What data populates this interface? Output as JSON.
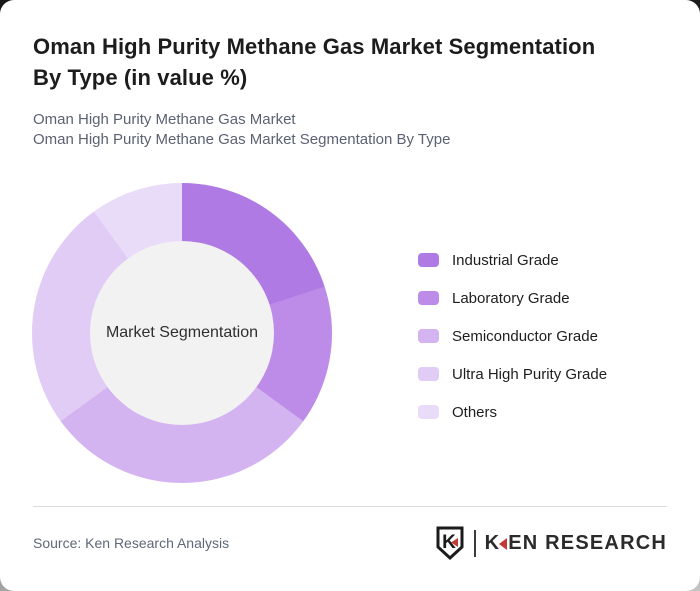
{
  "header": {
    "title_lines": [
      "Oman High Purity Methane Gas Market Segmentation",
      "By Type (in value %)"
    ],
    "subtitle1": "Oman High Purity Methane Gas Market",
    "subtitle2": "Oman High Purity Methane Gas Market Segmentation By Type"
  },
  "chart_data": {
    "type": "pie",
    "subtype": "donut",
    "title": "Oman High Purity Methane Gas Market Segmentation By Type (in value %)",
    "center_label": "Market Segmentation",
    "categories": [
      "Industrial Grade",
      "Laboratory Grade",
      "Semiconductor Grade",
      "Ultra High Purity Grade",
      "Others"
    ],
    "values": [
      20,
      15,
      30,
      25,
      10
    ],
    "unit": "%",
    "colors": [
      "#b07ae4",
      "#bd8ce9",
      "#d3b4f0",
      "#e0ccf5",
      "#e9dcf9"
    ],
    "hole_color": "#f2f2f2",
    "start_angle_deg": 0,
    "direction": "clockwise",
    "legend_position": "right"
  },
  "footer": {
    "source": "Source: Ken Research Analysis",
    "logo": {
      "shield_letter": "K",
      "brand_first_letter": "K",
      "brand_rest": "EN RESEARCH",
      "accent_color": "#c13a36"
    }
  }
}
